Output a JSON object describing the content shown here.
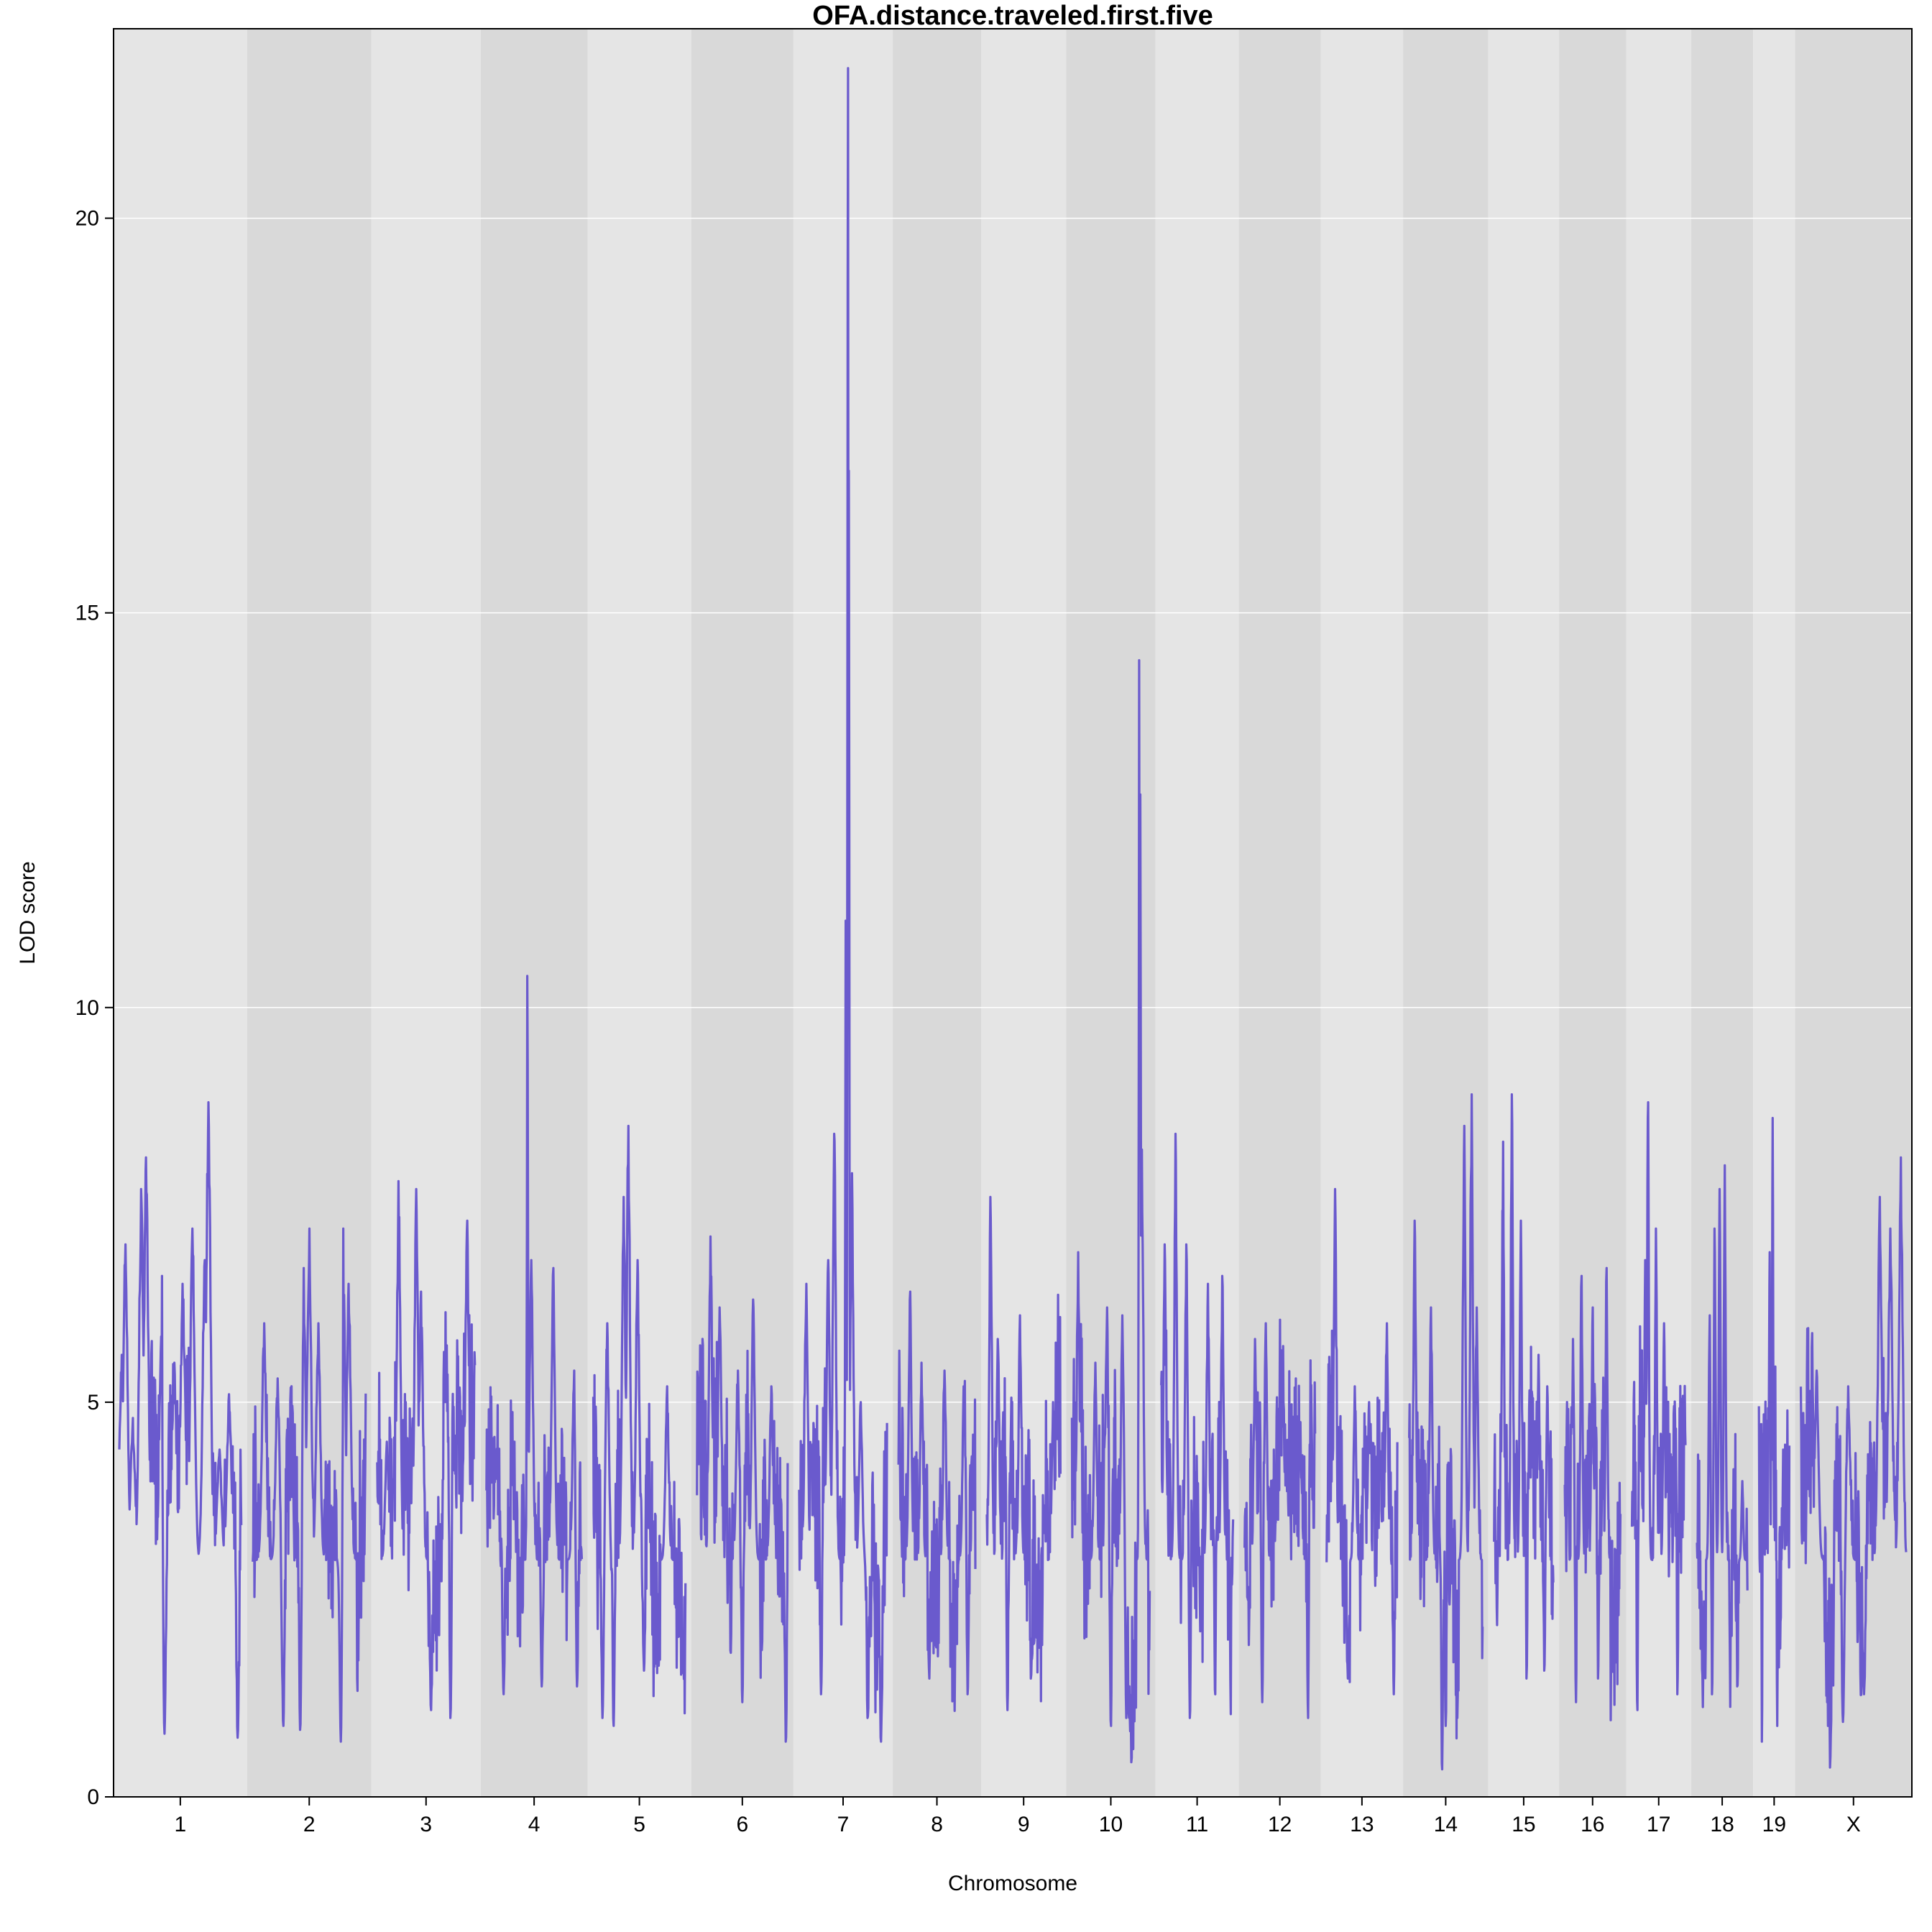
{
  "chart_data": {
    "type": "line",
    "title": "OFA.distance.traveled.first.five",
    "xlabel": "Chromosome",
    "ylabel": "LOD score",
    "ylim": [
      0,
      22.4
    ],
    "yticks": [
      0,
      5,
      10,
      15,
      20
    ],
    "grid": true,
    "line_color": "#6a5acd",
    "band_colors": [
      "#e5e5e5",
      "#d9d9d9"
    ],
    "chromosomes": [
      {
        "name": "1",
        "length": 195.5,
        "peaks": [
          [
            0.02,
            5.6
          ],
          [
            0.05,
            7.0
          ],
          [
            0.11,
            4.8
          ],
          [
            0.18,
            7.7
          ],
          [
            0.22,
            8.1
          ],
          [
            0.35,
            6.6
          ],
          [
            0.45,
            5.5
          ],
          [
            0.52,
            6.5
          ],
          [
            0.6,
            7.2
          ],
          [
            0.7,
            6.8
          ],
          [
            0.73,
            8.8
          ],
          [
            0.82,
            4.4
          ],
          [
            0.9,
            5.1
          ]
        ],
        "lows": [
          [
            0.37,
            0.8
          ],
          [
            0.97,
            0.75
          ]
        ]
      },
      {
        "name": "2",
        "length": 182.1,
        "peaks": [
          [
            0.1,
            6.0
          ],
          [
            0.22,
            5.3
          ],
          [
            0.45,
            6.7
          ],
          [
            0.5,
            7.2
          ],
          [
            0.58,
            6.0
          ],
          [
            0.8,
            7.2
          ],
          [
            0.85,
            6.5
          ]
        ],
        "lows": [
          [
            0.27,
            0.9
          ],
          [
            0.42,
            0.85
          ],
          [
            0.78,
            0.7
          ]
        ]
      },
      {
        "name": "3",
        "length": 160.0,
        "peaks": [
          [
            0.1,
            4.5
          ],
          [
            0.22,
            7.8
          ],
          [
            0.4,
            7.7
          ],
          [
            0.45,
            6.4
          ],
          [
            0.92,
            7.3
          ]
        ],
        "lows": [
          [
            0.55,
            1.1
          ],
          [
            0.75,
            1.0
          ]
        ]
      },
      {
        "name": "4",
        "length": 156.5,
        "peaks": [
          [
            0.1,
            4.3
          ],
          [
            0.43,
            10.4
          ],
          [
            0.47,
            6.8
          ],
          [
            0.7,
            6.7
          ],
          [
            0.92,
            5.4
          ]
        ],
        "lows": [
          [
            0.18,
            1.3
          ],
          [
            0.58,
            1.4
          ],
          [
            0.95,
            1.4
          ]
        ]
      },
      {
        "name": "5",
        "length": 151.8,
        "peaks": [
          [
            0.15,
            6.0
          ],
          [
            0.33,
            7.6
          ],
          [
            0.38,
            8.5
          ],
          [
            0.48,
            6.8
          ],
          [
            0.8,
            5.2
          ]
        ],
        "lows": [
          [
            0.1,
            1.0
          ],
          [
            0.22,
            0.9
          ],
          [
            0.55,
            1.6
          ]
        ]
      },
      {
        "name": "6",
        "length": 149.7,
        "peaks": [
          [
            0.15,
            7.1
          ],
          [
            0.25,
            6.2
          ],
          [
            0.45,
            5.4
          ],
          [
            0.62,
            6.3
          ],
          [
            0.82,
            5.2
          ]
        ],
        "lows": [
          [
            0.5,
            1.2
          ],
          [
            0.98,
            0.7
          ]
        ]
      },
      {
        "name": "7",
        "length": 145.4,
        "peaks": [
          [
            0.08,
            6.5
          ],
          [
            0.33,
            6.8
          ],
          [
            0.4,
            8.4
          ],
          [
            0.53,
            11.1
          ],
          [
            0.555,
            21.9
          ],
          [
            0.565,
            16.8
          ],
          [
            0.6,
            7.9
          ],
          [
            0.7,
            5.0
          ]
        ],
        "lows": [
          [
            0.25,
            1.3
          ],
          [
            0.78,
            1.0
          ],
          [
            0.93,
            0.7
          ]
        ]
      },
      {
        "name": "8",
        "length": 129.4,
        "peaks": [
          [
            0.15,
            6.4
          ],
          [
            0.3,
            5.5
          ],
          [
            0.6,
            5.4
          ],
          [
            0.85,
            5.2
          ]
        ],
        "lows": [
          [
            0.4,
            1.5
          ],
          [
            0.9,
            1.3
          ]
        ]
      },
      {
        "name": "9",
        "length": 124.6,
        "peaks": [
          [
            0.05,
            7.6
          ],
          [
            0.15,
            5.8
          ],
          [
            0.45,
            6.1
          ],
          [
            0.9,
            5.0
          ]
        ],
        "lows": [
          [
            0.28,
            1.1
          ],
          [
            0.6,
            1.5
          ]
        ]
      },
      {
        "name": "10",
        "length": 130.7,
        "peaks": [
          [
            0.08,
            6.9
          ],
          [
            0.3,
            5.5
          ],
          [
            0.45,
            6.2
          ],
          [
            0.65,
            6.1
          ],
          [
            0.865,
            14.4
          ],
          [
            0.88,
            12.7
          ],
          [
            0.9,
            8.2
          ]
        ],
        "lows": [
          [
            0.5,
            0.9
          ],
          [
            0.7,
            1.0
          ]
        ]
      },
      {
        "name": "11",
        "length": 122.1,
        "peaks": [
          [
            0.05,
            7.0
          ],
          [
            0.2,
            8.4
          ],
          [
            0.35,
            7.0
          ],
          [
            0.65,
            6.5
          ],
          [
            0.85,
            6.6
          ]
        ],
        "lows": [
          [
            0.4,
            1.0
          ],
          [
            0.75,
            1.3
          ]
        ]
      },
      {
        "name": "12",
        "length": 120.1,
        "peaks": [
          [
            0.15,
            5.8
          ],
          [
            0.3,
            6.0
          ],
          [
            0.55,
            5.0
          ],
          [
            0.8,
            4.2
          ]
        ],
        "lows": [
          [
            0.25,
            1.2
          ],
          [
            0.9,
            1.0
          ]
        ]
      },
      {
        "name": "13",
        "length": 120.4,
        "peaks": [
          [
            0.12,
            7.7
          ],
          [
            0.4,
            5.2
          ],
          [
            0.6,
            5.0
          ],
          [
            0.85,
            6.0
          ]
        ],
        "lows": [
          [
            0.3,
            1.5
          ],
          [
            0.95,
            1.3
          ]
        ]
      },
      {
        "name": "14",
        "length": 124.9,
        "peaks": [
          [
            0.08,
            7.3
          ],
          [
            0.3,
            6.2
          ],
          [
            0.75,
            8.5
          ],
          [
            0.85,
            8.9
          ],
          [
            0.92,
            6.2
          ]
        ],
        "lows": [
          [
            0.45,
            0.35
          ],
          [
            0.5,
            0.9
          ]
        ]
      },
      {
        "name": "15",
        "length": 103.5,
        "peaks": [
          [
            0.15,
            8.3
          ],
          [
            0.3,
            8.9
          ],
          [
            0.45,
            7.3
          ],
          [
            0.75,
            5.6
          ],
          [
            0.9,
            5.2
          ]
        ],
        "lows": [
          [
            0.55,
            1.5
          ],
          [
            0.85,
            1.6
          ]
        ]
      },
      {
        "name": "16",
        "length": 98.3,
        "peaks": [
          [
            0.15,
            5.8
          ],
          [
            0.3,
            6.6
          ],
          [
            0.5,
            6.2
          ],
          [
            0.75,
            6.7
          ]
        ],
        "lows": [
          [
            0.2,
            1.2
          ],
          [
            0.6,
            1.5
          ]
        ]
      },
      {
        "name": "17",
        "length": 95.3,
        "peaks": [
          [
            0.25,
            6.8
          ],
          [
            0.3,
            8.8
          ],
          [
            0.45,
            7.2
          ],
          [
            0.6,
            6.0
          ]
        ],
        "lows": [
          [
            0.1,
            1.1
          ],
          [
            0.85,
            1.3
          ]
        ]
      },
      {
        "name": "18",
        "length": 90.7,
        "peaks": [
          [
            0.25,
            6.1
          ],
          [
            0.35,
            7.2
          ],
          [
            0.45,
            7.7
          ],
          [
            0.55,
            8.0
          ],
          [
            0.9,
            4.0
          ]
        ],
        "lows": [
          [
            0.3,
            1.3
          ],
          [
            0.8,
            1.4
          ]
        ]
      },
      {
        "name": "19",
        "length": 61.4,
        "peaks": [
          [
            0.15,
            4.5
          ],
          [
            0.35,
            6.9
          ],
          [
            0.45,
            8.6
          ],
          [
            0.8,
            4.4
          ]
        ],
        "lows": [
          [
            0.1,
            0.7
          ],
          [
            0.6,
            0.9
          ]
        ]
      },
      {
        "name": "X",
        "length": 171.0,
        "peaks": [
          [
            0.15,
            5.4
          ],
          [
            0.45,
            5.2
          ],
          [
            0.75,
            7.6
          ],
          [
            0.85,
            7.2
          ],
          [
            0.95,
            8.1
          ]
        ],
        "lows": [
          [
            0.4,
            0.95
          ],
          [
            0.6,
            1.3
          ]
        ]
      }
    ]
  }
}
